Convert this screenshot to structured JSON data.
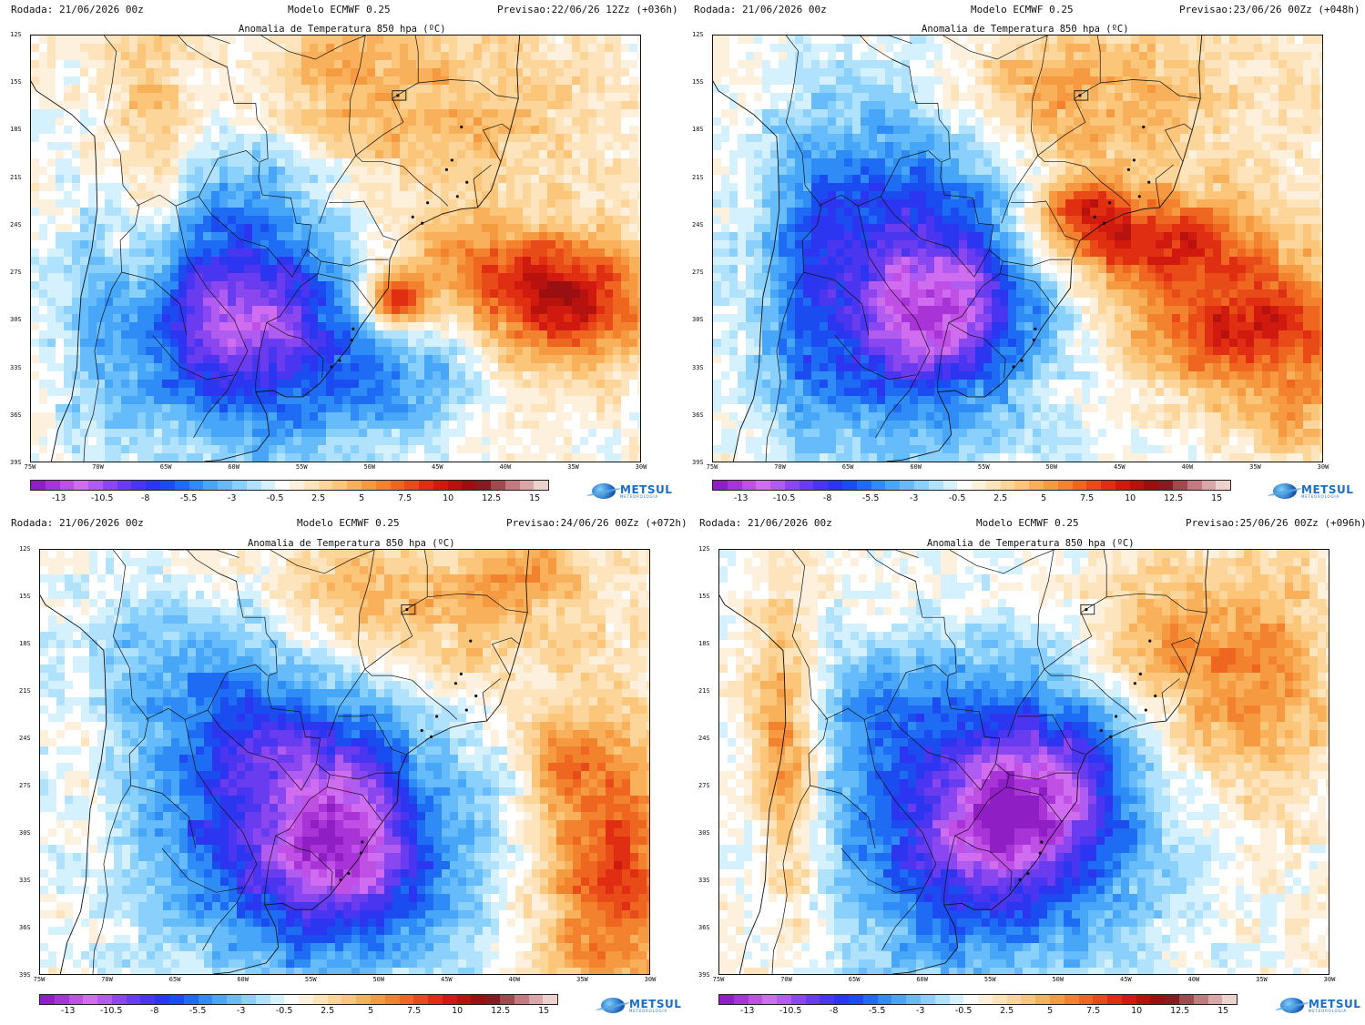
{
  "panels": [
    {
      "run": "Rodada: 21/06/2026 00z",
      "model": "Modelo ECMWF 0.25",
      "forecast": "Previsao:22/06/26 12Zz (+036h)",
      "title": "Anomalia de Temperatura 850 hpa (ºC)"
    },
    {
      "run": "Rodada: 21/06/2026 00z",
      "model": "Modelo ECMWF 0.25",
      "forecast": "Previsao:23/06/26 00Zz (+048h)",
      "title": "Anomalia de Temperatura 850 hpa (ºC)"
    },
    {
      "run": "Rodada: 21/06/2026 00z",
      "model": "Modelo ECMWF 0.25",
      "forecast": "Previsao:24/06/26 00Zz (+072h)",
      "title": "Anomalia de Temperatura 850 hpa (ºC)"
    },
    {
      "run": "Rodada: 21/06/2026 00z",
      "model": "Modelo ECMWF 0.25",
      "forecast": "Previsao:25/06/26 00Zz (+096h)",
      "title": "Anomalia de Temperatura 850 hpa (ºC)"
    }
  ],
  "lat_labels": [
    "12S",
    "15S",
    "18S",
    "21S",
    "24S",
    "27S",
    "30S",
    "33S",
    "36S",
    "39S"
  ],
  "lon_labels": [
    "75W",
    "70W",
    "65W",
    "60W",
    "55W",
    "50W",
    "45W",
    "40W",
    "35W",
    "30W"
  ],
  "colorbar": {
    "labels": [
      "-13",
      "-10.5",
      "-8",
      "-5.5",
      "-3",
      "-0.5",
      "2.5",
      "5",
      "7.5",
      "10",
      "12.5",
      "15"
    ],
    "colors": [
      "#8f1fc4",
      "#a833d6",
      "#c04fe6",
      "#d06cf0",
      "#b05cf0",
      "#8a47f0",
      "#6a3cf0",
      "#4a35f0",
      "#2c36f0",
      "#1a4cf0",
      "#1f6cf4",
      "#2f8cf6",
      "#48a6f8",
      "#66bcfa",
      "#8ad0fc",
      "#b0e2fd",
      "#d6f1fe",
      "#ffffff",
      "#fdf1de",
      "#fde4bd",
      "#fcd59a",
      "#fbc57a",
      "#f8b05a",
      "#f59a40",
      "#f2822e",
      "#ee6620",
      "#e84a18",
      "#e02e12",
      "#d01a10",
      "#b8120e",
      "#9c0f10",
      "#8a1a22",
      "#a04a50",
      "#c07a80",
      "#d8a8a8",
      "#ecd2cc"
    ]
  },
  "logo": {
    "name": "METSUL",
    "sub": "METEOROLOGIA"
  },
  "colors": {
    "cold_core": "#c46cf0",
    "cold": "#2e3cf0",
    "cool": "#4aa6f8",
    "warm": "#f8b05a",
    "hot": "#e83a16"
  }
}
